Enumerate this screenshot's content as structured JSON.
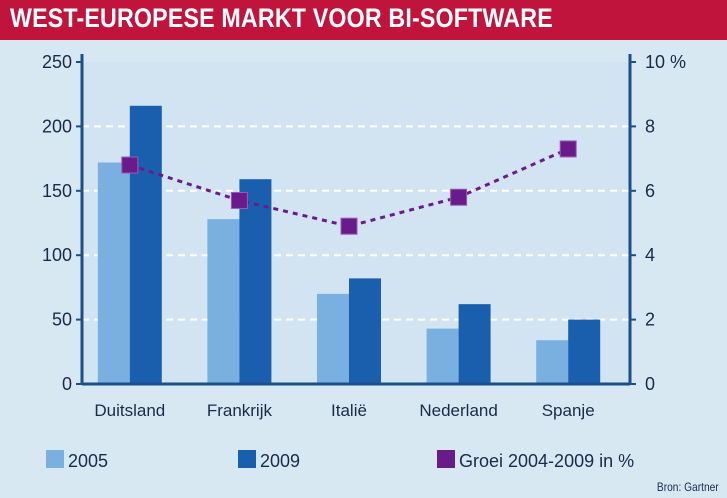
{
  "chart_data": {
    "type": "bar",
    "title": "WEST-EUROPESE MARKT VOOR BI-SOFTWARE",
    "categories": [
      "Duitsland",
      "Frankrijk",
      "Italië",
      "Nederland",
      "Spanje"
    ],
    "series": [
      {
        "name": "2005",
        "kind": "bar",
        "axis": "left",
        "color": "#7ab0e0",
        "values": [
          172,
          128,
          70,
          43,
          34
        ]
      },
      {
        "name": "2009",
        "kind": "bar",
        "axis": "left",
        "color": "#1a5fae",
        "values": [
          216,
          159,
          82,
          62,
          50
        ]
      },
      {
        "name": "Groei 2004-2009 in %",
        "kind": "line",
        "axis": "right",
        "color": "#6a1b8a",
        "values": [
          6.8,
          5.7,
          4.9,
          5.8,
          7.3
        ]
      }
    ],
    "y_left": {
      "min": 0,
      "max": 250,
      "ticks": [
        0,
        50,
        100,
        150,
        200,
        250
      ]
    },
    "y_right": {
      "min": 0,
      "max": 10,
      "ticks": [
        "0",
        "2",
        "4",
        "6",
        "8",
        "10 %"
      ]
    },
    "grid": true,
    "legend_position": "bottom"
  },
  "source": "Bron: Gartner"
}
